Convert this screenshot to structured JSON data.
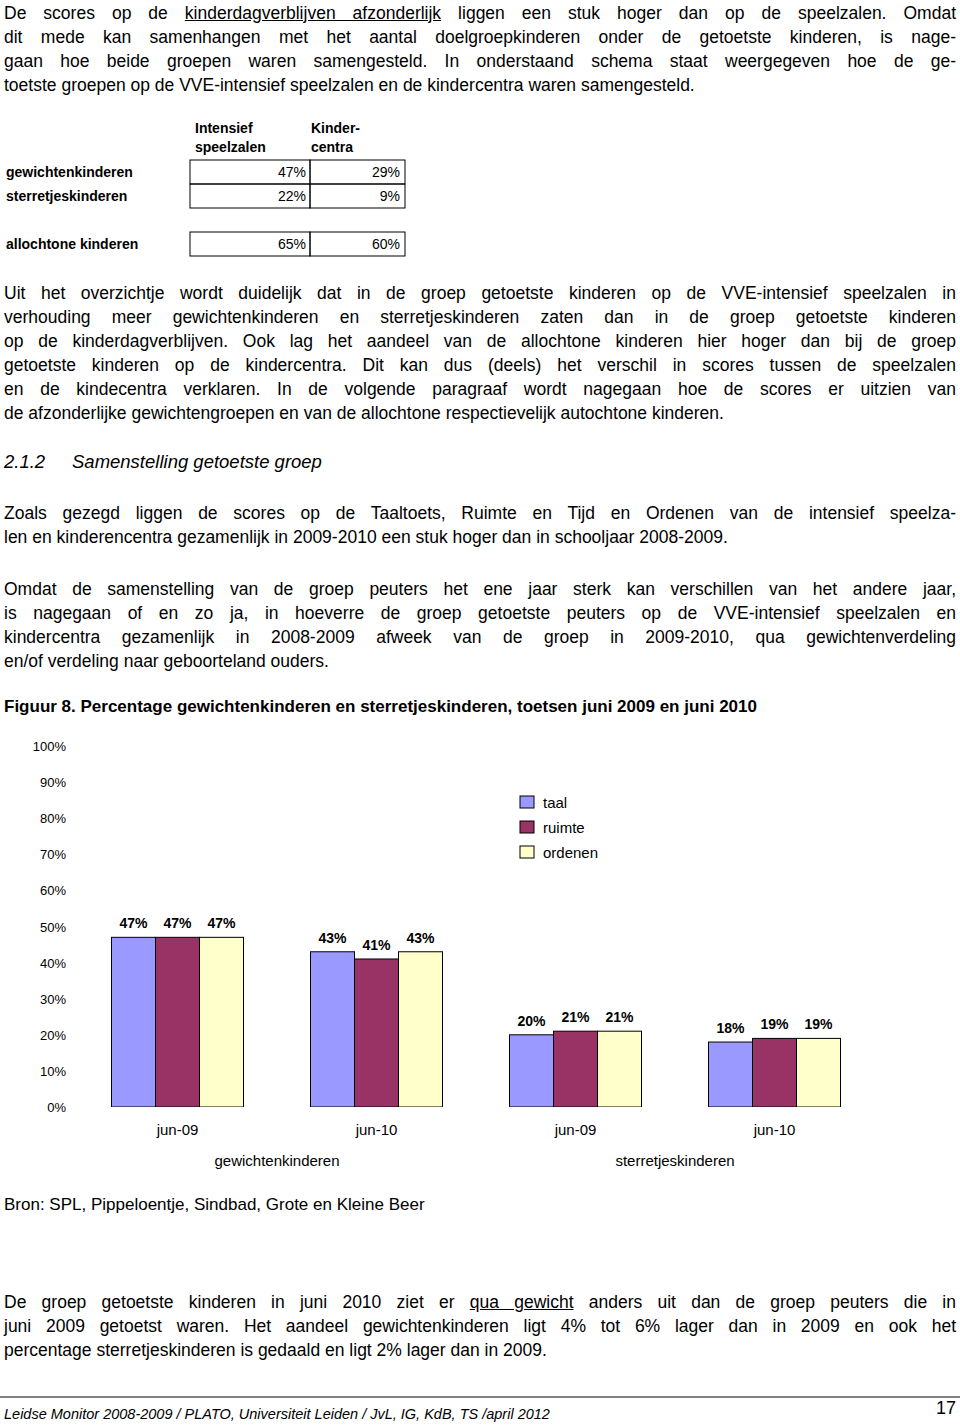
{
  "page": {
    "intro": [
      [
        "De scores op de ",
        "kinderdagverblijven afzonderlijk",
        " liggen een stuk hoger dan op de speelzalen. Omdat"
      ],
      [
        "dit mede kan samenhangen met het aantal doelgroepkinderen onder de getoetste kinderen, is nage-"
      ],
      [
        "gaan hoe beide groepen waren samengesteld. In onderstaand schema staat weergegeven hoe de ge-"
      ],
      [
        "toetste groepen op de VVE-intensief speelzalen en de kindercentra waren samengesteld."
      ]
    ],
    "table": {
      "header": [
        [
          "Intensief",
          "speelzalen"
        ],
        [
          "Kinder-",
          "centra"
        ]
      ],
      "rows": [
        [
          "gewichtenkinderen",
          "47%",
          "29%"
        ],
        [
          "sterretjeskinderen",
          "22%",
          "9%"
        ],
        [
          "allochtone kinderen",
          "65%",
          "60%"
        ]
      ]
    },
    "paragraph2": [
      [
        "Uit het overzichtje wordt duidelijk dat in de groep getoetste kinderen op de VVE-intensief speelzalen in"
      ],
      [
        "verhouding meer gewichtenkinderen en sterretjeskinderen zaten dan in de groep getoetste kinderen"
      ],
      [
        "op de kinderdagverblijven. Ook lag het aandeel van de allochtone kinderen hier hoger dan bij de groep"
      ],
      [
        "getoetste kinderen op de kindercentra. Dit kan dus (deels) het verschil in scores tussen de speelzalen"
      ],
      [
        "en de kindecentra verklaren. In de volgende paragraaf wordt nagegaan hoe de scores er uitzien van"
      ],
      [
        "de afzonderlijke gewichtengroepen en van de allochtone respectievelijk autochtone kinderen."
      ]
    ],
    "heading": {
      "number": "2.1.2",
      "title": "Samenstelling getoetste groep"
    },
    "paragraph3": [
      [
        "Zoals gezegd liggen de scores op de Taaltoets, Ruimte en Tijd en Ordenen van de intensief speelza-"
      ],
      [
        "len en kinderencentra gezamenlijk in 2009-2010 een stuk hoger dan in schooljaar 2008-2009."
      ]
    ],
    "paragraph4": [
      [
        "Omdat de samenstelling van de groep peuters het ene jaar sterk kan verschillen van het andere jaar,"
      ],
      [
        "is nagegaan of en zo ja, in hoeverre de groep getoetste peuters op de VVE-intensief speelzalen en"
      ],
      [
        "kindercentra gezamenlijk in 2008-2009 afweek van de groep in 2009-2010, qua gewichtenverdeling"
      ],
      [
        "en/of verdeling naar geboorteland ouders."
      ]
    ],
    "paragraph5": [
      [
        "De groep getoetste kinderen in juni 2010 ziet er ",
        "qua gewicht",
        " anders uit dan de groep peuters die in"
      ],
      [
        "juni 2009 getoetst waren. Het aandeel gewichtenkinderen ligt 4% tot 6% lager dan in 2009 en ook het"
      ],
      [
        "percentage sterretjeskinderen is gedaald en ligt 2% lager dan in 2009."
      ]
    ],
    "footer": "Leidse Monitor 2008-2009 / PLATO, Universiteit Leiden / JvL, IG, KdB, TS /april 2012",
    "page_number": "17"
  },
  "chart_data": {
    "type": "bar",
    "title": "Figuur 8. Percentage gewichtenkinderen en sterretjeskinderen, toetsen juni 2009 en juni 2010",
    "source": "Bron: SPL, Pippeloentje, Sindbad, Grote en Kleine Beer",
    "categories": [
      "jun-09",
      "jun-10",
      "jun-09",
      "jun-10"
    ],
    "category_groups": [
      "gewichtenkinderen",
      "sterretjeskinderen"
    ],
    "series": [
      {
        "name": "taal",
        "color": "#9999ff",
        "values": [
          47,
          43,
          20,
          18
        ],
        "value_labels": [
          "47%",
          "43%",
          "20%",
          "18%"
        ]
      },
      {
        "name": "ruimte",
        "color": "#993366",
        "values": [
          47,
          41,
          21,
          19
        ],
        "value_labels": [
          "47%",
          "41%",
          "21%",
          "19%"
        ]
      },
      {
        "name": "ordenen",
        "color": "#ffffcc",
        "values": [
          47,
          43,
          21,
          19
        ],
        "value_labels": [
          "47%",
          "43%",
          "21%",
          "19%"
        ]
      }
    ],
    "ylim": [
      0,
      100
    ],
    "yticks": [
      {
        "value": 0,
        "label": "0%"
      },
      {
        "value": 10,
        "label": "10%"
      },
      {
        "value": 20,
        "label": "20%"
      },
      {
        "value": 30,
        "label": "30%"
      },
      {
        "value": 40,
        "label": "40%"
      },
      {
        "value": 50,
        "label": "50%"
      },
      {
        "value": 60,
        "label": "60%"
      },
      {
        "value": 70,
        "label": "70%"
      },
      {
        "value": 80,
        "label": "80%"
      },
      {
        "value": 90,
        "label": "90%"
      },
      {
        "value": 100,
        "label": "100%"
      }
    ],
    "grid": false,
    "legend": "top-right",
    "data_labels": true
  }
}
